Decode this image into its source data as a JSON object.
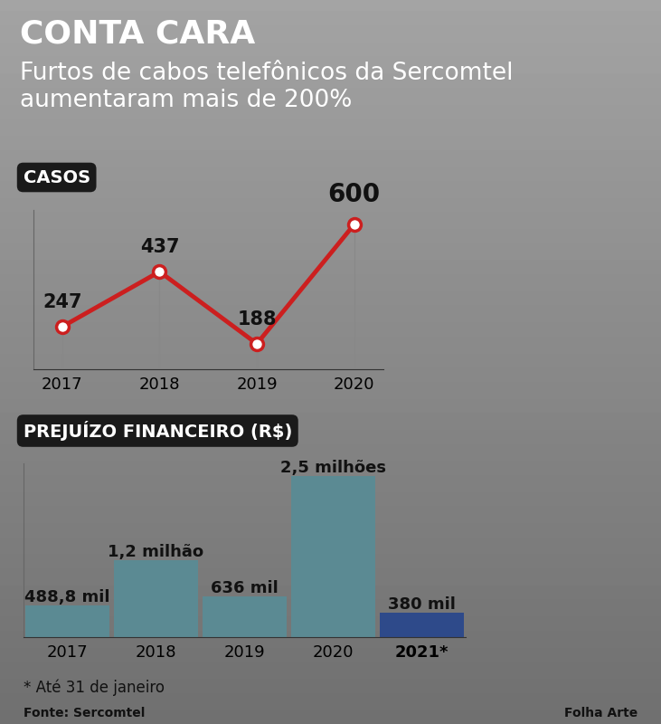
{
  "title": "CONTA CARA",
  "subtitle": "Furtos de cabos telefônicos da Sercomtel aumentaram mais de 200%",
  "note": "* Até 31 de janeiro",
  "source": "Fonte: Sercomtel",
  "credit": "Folha Arte",
  "chart_data": [
    {
      "type": "line",
      "title": "CASOS",
      "categories": [
        "2017",
        "2018",
        "2019",
        "2020"
      ],
      "values": [
        247,
        437,
        188,
        600
      ],
      "color": "#cc1f1f",
      "marker": "o",
      "ylim": [
        100,
        650
      ],
      "data_labels": true,
      "tick_labels": "x"
    },
    {
      "type": "bar",
      "title": "PREJUÍZO FINANCEIRO (R$)",
      "categories": [
        "2017",
        "2018",
        "2019",
        "2020",
        "2021*"
      ],
      "values": [
        488800,
        1200000,
        636000,
        2500000,
        380000
      ],
      "value_labels": [
        "488,8 mil",
        "1,2 milhão",
        "636 mil",
        "2,5 milhões",
        "380 mil"
      ],
      "colors": [
        "#5b8a93",
        "#5b8a93",
        "#5b8a93",
        "#5b8a93",
        "#2e4a8a"
      ],
      "ylim": [
        0,
        2700000
      ],
      "data_labels": true,
      "tick_labels": "x"
    }
  ]
}
